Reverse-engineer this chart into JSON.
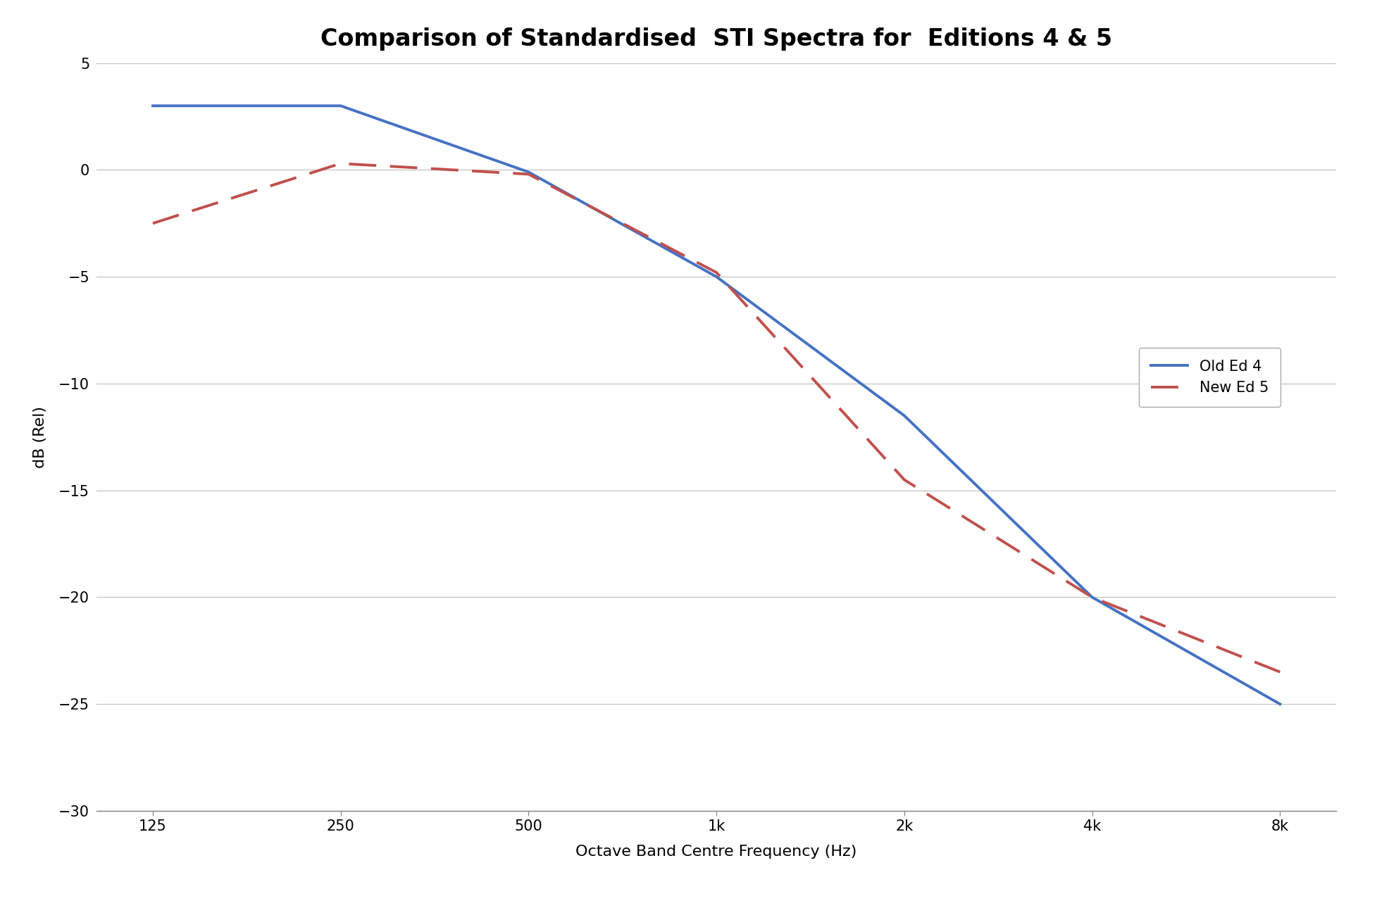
{
  "title": "Comparison of Standardised  STI Spectra for  Editions 4 & 5",
  "xlabel": "Octave Band Centre Frequency (Hz)",
  "ylabel": "dB (Rel)",
  "x_labels": [
    "125",
    "250",
    "500",
    "1k",
    "2k",
    "4k",
    "8k"
  ],
  "x_values": [
    0,
    1,
    2,
    3,
    4,
    5,
    6
  ],
  "ed4_values": [
    3.0,
    3.0,
    -0.1,
    -5.0,
    -11.5,
    -20.0,
    -25.0
  ],
  "ed5_values": [
    -2.5,
    0.3,
    -0.2,
    -4.8,
    -14.5,
    -20.0,
    -23.5
  ],
  "ed4_color": "#4472C4",
  "ed5_color": "#C0504D",
  "ed4_label": "Old Ed 4",
  "ed5_label": "New Ed 5",
  "ylim": [
    -30,
    5
  ],
  "yticks": [
    5,
    0,
    -5,
    -10,
    -15,
    -20,
    -25,
    -30
  ],
  "grid_color": "#BEBEBE",
  "background_color": "#FFFFFF",
  "title_fontsize": 24,
  "axis_label_fontsize": 16,
  "tick_fontsize": 15,
  "legend_fontsize": 15,
  "line_width": 2.8
}
